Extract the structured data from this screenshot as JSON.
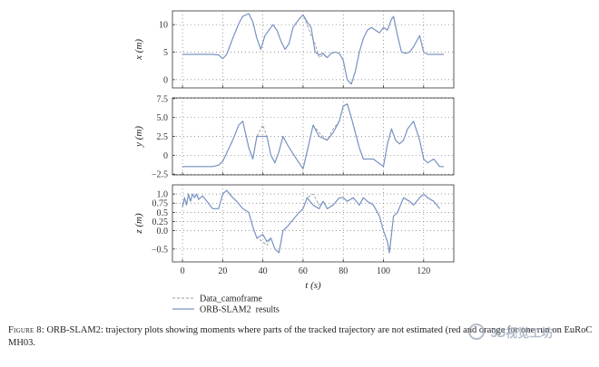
{
  "chart_data": {
    "type": "line",
    "xlabel": "t (s)",
    "xlim": [
      -5,
      135
    ],
    "xticks": [
      "0",
      "20",
      "40",
      "60",
      "80",
      "100",
      "120"
    ],
    "grid": "dotted",
    "legend_position": "bottom-left",
    "series_names": [
      "Data_camoframe",
      "ORB-SLAM2_results"
    ],
    "colors": {
      "Data_camoframe": "#9a9a9a",
      "ORB-SLAM2_results": "#7a94c4"
    },
    "panels": [
      {
        "ylabel": "x (m)",
        "ylim": [
          -1.5,
          12.5
        ],
        "yticks": [
          {
            "v": 0,
            "label": "0"
          },
          {
            "v": 5,
            "label": "5"
          },
          {
            "v": 10,
            "label": "10"
          }
        ],
        "series": [
          {
            "name": "Data_camoframe",
            "x": [
              0,
              5,
              10,
              15,
              18,
              20,
              22,
              25,
              28,
              30,
              33,
              35,
              37,
              39,
              41,
              43,
              45,
              47,
              49,
              51,
              53,
              55,
              58,
              60,
              62,
              64,
              66,
              68,
              70,
              72,
              74,
              76,
              78,
              80,
              82,
              84,
              86,
              88,
              90,
              92,
              94,
              96,
              98,
              100,
              102,
              104,
              105,
              107,
              109,
              111,
              113,
              115,
              118,
              120,
              122,
              125,
              128,
              130
            ],
            "y": [
              4.6,
              4.6,
              4.6,
              4.6,
              4.5,
              3.8,
              4.6,
              7.5,
              10.2,
              11.5,
              12.0,
              10.5,
              7.5,
              5.5,
              8.0,
              9.0,
              10.0,
              9.0,
              7.0,
              5.5,
              6.5,
              9.5,
              11.0,
              11.8,
              10.0,
              8.0,
              6.5,
              4.0,
              4.5,
              4.0,
              4.8,
              5.0,
              4.8,
              3.5,
              0.0,
              -0.8,
              1.5,
              5.0,
              7.5,
              9.0,
              9.5,
              9.0,
              8.5,
              9.5,
              9.0,
              11.0,
              11.5,
              8.0,
              5.0,
              4.8,
              5.0,
              6.0,
              8.0,
              5.0,
              4.6,
              4.6,
              4.6,
              4.6
            ]
          },
          {
            "name": "ORB-SLAM2_results",
            "x": [
              0,
              5,
              10,
              15,
              18,
              20,
              22,
              25,
              28,
              30,
              33,
              35,
              37,
              39,
              41,
              43,
              45,
              47,
              49,
              51,
              53,
              55,
              58,
              60,
              62,
              64,
              66,
              68,
              70,
              72,
              74,
              76,
              78,
              80,
              82,
              84,
              86,
              88,
              90,
              92,
              94,
              96,
              98,
              100,
              102,
              104,
              105,
              107,
              109,
              111,
              113,
              115,
              118,
              120,
              122,
              125,
              128,
              130
            ],
            "y": [
              4.6,
              4.6,
              4.6,
              4.6,
              4.5,
              3.8,
              4.6,
              7.5,
              10.2,
              11.5,
              12.0,
              10.5,
              7.5,
              5.5,
              8.0,
              9.0,
              10.0,
              9.0,
              7.0,
              5.5,
              6.5,
              9.5,
              11.0,
              11.8,
              10.5,
              9.5,
              5.0,
              4.5,
              4.8,
              4.0,
              4.8,
              5.0,
              4.8,
              3.5,
              0.0,
              -0.8,
              1.5,
              5.0,
              7.5,
              9.0,
              9.5,
              9.0,
              8.5,
              9.5,
              9.0,
              11.0,
              11.5,
              8.0,
              5.0,
              4.8,
              5.0,
              6.0,
              8.0,
              5.0,
              4.6,
              4.6,
              4.6,
              4.6
            ]
          }
        ]
      },
      {
        "ylabel": "y (m)",
        "ylim": [
          -2.6,
          7.6
        ],
        "yticks": [
          {
            "v": -2.5,
            "label": "−2.5"
          },
          {
            "v": 0,
            "label": "0"
          },
          {
            "v": 2.5,
            "label": "2.5"
          },
          {
            "v": 5,
            "label": "5.0"
          },
          {
            "v": 7.5,
            "label": "7.5"
          }
        ],
        "series": [
          {
            "name": "Data_camoframe",
            "x": [
              0,
              5,
              10,
              15,
              18,
              20,
              22,
              25,
              28,
              30,
              33,
              35,
              37,
              40,
              42,
              44,
              46,
              48,
              50,
              52,
              55,
              58,
              60,
              62,
              65,
              68,
              72,
              75,
              78,
              80,
              82,
              84,
              86,
              88,
              90,
              95,
              100,
              102,
              104,
              106,
              108,
              110,
              112,
              115,
              118,
              120,
              122,
              125,
              128,
              130
            ],
            "y": [
              -1.5,
              -1.5,
              -1.5,
              -1.5,
              -1.3,
              -0.8,
              0.3,
              2.0,
              4.0,
              4.5,
              1.0,
              -0.5,
              2.5,
              4.0,
              2.5,
              0.0,
              -1.0,
              0.5,
              2.5,
              1.5,
              0.2,
              -1.0,
              -1.8,
              0.5,
              4.0,
              3.0,
              2.0,
              3.5,
              4.5,
              6.5,
              6.8,
              5.0,
              3.0,
              1.0,
              -0.5,
              -0.5,
              -1.5,
              1.5,
              3.5,
              2.0,
              1.5,
              2.0,
              3.5,
              4.5,
              2.0,
              -0.5,
              -1.0,
              -0.5,
              -1.5,
              -1.5
            ]
          },
          {
            "name": "ORB-SLAM2_results",
            "x": [
              0,
              5,
              10,
              15,
              18,
              20,
              22,
              25,
              28,
              30,
              33,
              35,
              37,
              40,
              42,
              44,
              46,
              48,
              50,
              52,
              55,
              58,
              60,
              62,
              65,
              68,
              72,
              75,
              78,
              80,
              82,
              84,
              86,
              88,
              90,
              95,
              100,
              102,
              104,
              106,
              108,
              110,
              112,
              115,
              118,
              120,
              122,
              125,
              128,
              130
            ],
            "y": [
              -1.5,
              -1.5,
              -1.5,
              -1.5,
              -1.3,
              -0.8,
              0.3,
              2.0,
              4.0,
              4.5,
              1.0,
              -0.5,
              2.5,
              2.5,
              2.5,
              0.0,
              -1.0,
              0.5,
              2.5,
              1.5,
              0.2,
              -1.0,
              -1.8,
              0.5,
              4.0,
              2.5,
              2.0,
              3.0,
              4.5,
              6.5,
              6.8,
              5.0,
              3.0,
              1.0,
              -0.5,
              -0.5,
              -1.5,
              1.5,
              3.5,
              2.0,
              1.5,
              2.0,
              3.5,
              4.5,
              2.0,
              -0.5,
              -1.0,
              -0.5,
              -1.5,
              -1.5
            ]
          }
        ]
      },
      {
        "ylabel": "z (m)",
        "ylim": [
          -0.85,
          1.25
        ],
        "yticks": [
          {
            "v": -0.5,
            "label": "−0.5"
          },
          {
            "v": 0,
            "label": "0.0"
          },
          {
            "v": 0.25,
            "label": "0.25"
          },
          {
            "v": 0.5,
            "label": "0.5"
          },
          {
            "v": 0.75,
            "label": "0.75"
          },
          {
            "v": 1.0,
            "label": "1.0"
          }
        ],
        "series": [
          {
            "name": "Data_camoframe",
            "x": [
              0,
              1,
              2,
              3,
              4,
              5,
              6,
              7,
              8,
              10,
              15,
              18,
              20,
              22,
              25,
              27,
              30,
              33,
              35,
              37,
              40,
              42,
              44,
              46,
              48,
              50,
              52,
              55,
              58,
              60,
              62,
              65,
              68,
              70,
              72,
              75,
              78,
              80,
              82,
              85,
              88,
              90,
              92,
              95,
              98,
              100,
              102,
              103,
              105,
              107,
              110,
              113,
              115,
              118,
              120,
              122,
              125,
              128
            ],
            "y": [
              0.65,
              0.9,
              0.7,
              1.0,
              0.8,
              1.0,
              0.9,
              1.0,
              0.85,
              0.95,
              0.6,
              0.6,
              1.0,
              1.1,
              0.9,
              0.8,
              0.6,
              0.5,
              0.1,
              -0.2,
              -0.3,
              -0.4,
              -0.2,
              -0.5,
              -0.6,
              0.0,
              0.1,
              0.3,
              0.5,
              0.6,
              0.9,
              1.0,
              0.7,
              0.8,
              0.6,
              0.7,
              0.9,
              0.9,
              0.8,
              0.9,
              0.7,
              0.9,
              0.8,
              0.7,
              0.4,
              0.0,
              -0.3,
              -0.6,
              0.4,
              0.5,
              0.9,
              0.8,
              0.7,
              0.9,
              1.0,
              0.9,
              0.8,
              0.6
            ]
          },
          {
            "name": "ORB-SLAM2_results",
            "x": [
              0,
              1,
              2,
              3,
              4,
              5,
              6,
              7,
              8,
              10,
              15,
              18,
              20,
              22,
              25,
              27,
              30,
              33,
              35,
              37,
              40,
              42,
              44,
              46,
              48,
              50,
              52,
              55,
              58,
              60,
              62,
              65,
              68,
              70,
              72,
              75,
              78,
              80,
              82,
              85,
              88,
              90,
              92,
              95,
              98,
              100,
              102,
              103,
              105,
              107,
              110,
              113,
              115,
              118,
              120,
              122,
              125,
              128
            ],
            "y": [
              0.65,
              0.9,
              0.7,
              1.0,
              0.8,
              1.0,
              0.9,
              1.0,
              0.85,
              0.95,
              0.6,
              0.6,
              1.0,
              1.1,
              0.9,
              0.8,
              0.6,
              0.5,
              0.1,
              -0.2,
              -0.1,
              -0.3,
              -0.2,
              -0.5,
              -0.6,
              0.0,
              0.1,
              0.3,
              0.5,
              0.6,
              0.9,
              0.7,
              0.6,
              0.8,
              0.6,
              0.7,
              0.9,
              0.9,
              0.8,
              0.9,
              0.7,
              0.9,
              0.8,
              0.7,
              0.4,
              0.0,
              -0.3,
              -0.6,
              0.4,
              0.5,
              0.9,
              0.8,
              0.7,
              0.9,
              1.0,
              0.9,
              0.8,
              0.6
            ]
          }
        ]
      }
    ]
  },
  "caption": {
    "lead": "Figure 8:",
    "text": "ORB-SLAM2: trajectory plots showing moments where parts of the tracked trajectory are not estimated (red and orange for one run on EuRoC MH03."
  },
  "watermark": {
    "text": "3D视觉工坊"
  }
}
